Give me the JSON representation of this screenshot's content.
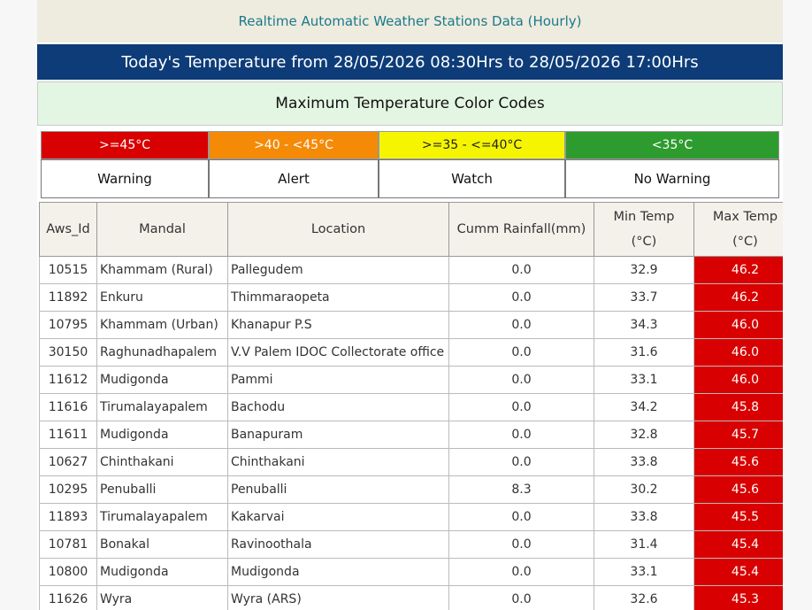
{
  "header": {
    "title": "Realtime Automatic Weather Stations Data (Hourly)",
    "subtitle": "Today's Temperature from 28/05/2026 08:30Hrs to 28/05/2026 17:00Hrs",
    "legend_title": "Maximum Temperature Color Codes"
  },
  "color_codes": [
    {
      "range": ">=45°C",
      "level": "Warning",
      "color": "#d80000"
    },
    {
      "range": ">40 - <45°C",
      "level": "Alert",
      "color": "#f58a07"
    },
    {
      "range": ">=35 - <=40°C",
      "level": "Watch",
      "color": "#f5f500"
    },
    {
      "range": "<35°C",
      "level": "No Warning",
      "color": "#2e9b2e"
    }
  ],
  "table": {
    "columns": [
      "Aws_Id",
      "Mandal",
      "Location",
      "Cumm Rainfall(mm)",
      "Min Temp\n(°C)",
      "Max Temp\n(°C)"
    ],
    "rows": [
      [
        "10515",
        "Khammam (Rural)",
        "Pallegudem",
        "0.0",
        "32.9",
        "46.2"
      ],
      [
        "11892",
        "Enkuru",
        "Thimmaraopeta",
        "0.0",
        "33.7",
        "46.2"
      ],
      [
        "10795",
        "Khammam (Urban)",
        "Khanapur P.S",
        "0.0",
        "34.3",
        "46.0"
      ],
      [
        "30150",
        "Raghunadhapalem",
        "V.V Palem IDOC Collectorate office",
        "0.0",
        "31.6",
        "46.0"
      ],
      [
        "11612",
        "Mudigonda",
        "Pammi",
        "0.0",
        "33.1",
        "46.0"
      ],
      [
        "11616",
        "Tirumalayapalem",
        "Bachodu",
        "0.0",
        "34.2",
        "45.8"
      ],
      [
        "11611",
        "Mudigonda",
        "Banapuram",
        "0.0",
        "32.8",
        "45.7"
      ],
      [
        "10627",
        "Chinthakani",
        "Chinthakani",
        "0.0",
        "33.8",
        "45.6"
      ],
      [
        "10295",
        "Penuballi",
        "Penuballi",
        "8.3",
        "30.2",
        "45.6"
      ],
      [
        "11893",
        "Tirumalayapalem",
        "Kakarvai",
        "0.0",
        "33.8",
        "45.5"
      ],
      [
        "10781",
        "Bonakal",
        "Ravinoothala",
        "0.0",
        "31.4",
        "45.4"
      ],
      [
        "10800",
        "Mudigonda",
        "Mudigonda",
        "0.0",
        "33.1",
        "45.4"
      ],
      [
        "11626",
        "Wyra",
        "Wyra (ARS)",
        "0.0",
        "32.6",
        "45.3"
      ]
    ]
  }
}
